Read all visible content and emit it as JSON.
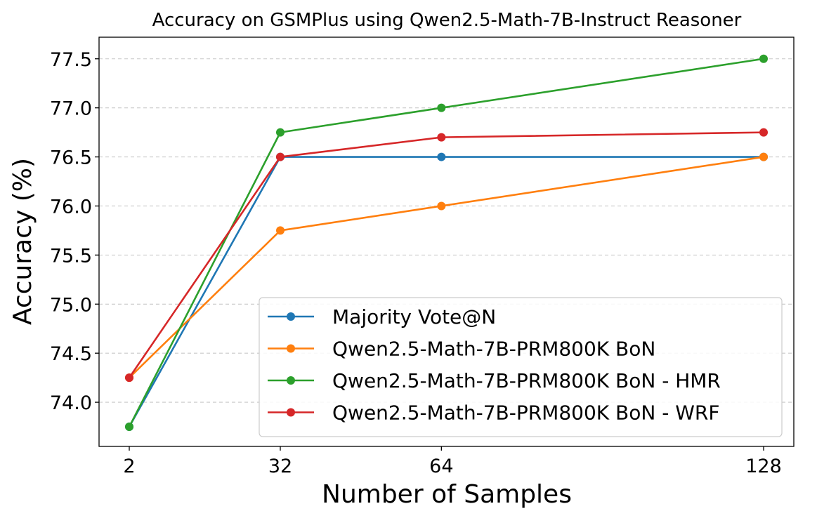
{
  "chart_data": {
    "type": "line",
    "title": "Accuracy on GSMPlus using Qwen2.5-Math-7B-Instruct Reasoner",
    "xlabel": "Number of Samples",
    "ylabel": "Accuracy (%)",
    "x": [
      2,
      32,
      64,
      128
    ],
    "x_tick_labels": [
      "2",
      "32",
      "64",
      "128"
    ],
    "y_ticks": [
      74.0,
      74.5,
      75.0,
      75.5,
      76.0,
      76.5,
      77.0,
      77.5
    ],
    "y_tick_labels": [
      "74.0",
      "74.5",
      "75.0",
      "75.5",
      "76.0",
      "76.5",
      "77.0",
      "77.5"
    ],
    "ylim": [
      73.55,
      77.72
    ],
    "grid": "horizontal dashed",
    "legend_position": "lower-right",
    "series": [
      {
        "name": "Majority Vote@N",
        "color": "#1f77b4",
        "values": [
          73.75,
          76.5,
          76.5,
          76.5
        ]
      },
      {
        "name": "Qwen2.5-Math-7B-PRM800K BoN",
        "color": "#ff7f0e",
        "values": [
          74.25,
          75.75,
          76.0,
          76.5
        ]
      },
      {
        "name": "Qwen2.5-Math-7B-PRM800K BoN - HMR",
        "color": "#2ca02c",
        "values": [
          73.75,
          76.75,
          77.0,
          77.5
        ]
      },
      {
        "name": "Qwen2.5-Math-7B-PRM800K BoN - WRF",
        "color": "#d62728",
        "values": [
          74.25,
          76.5,
          76.7,
          76.75
        ]
      }
    ]
  }
}
